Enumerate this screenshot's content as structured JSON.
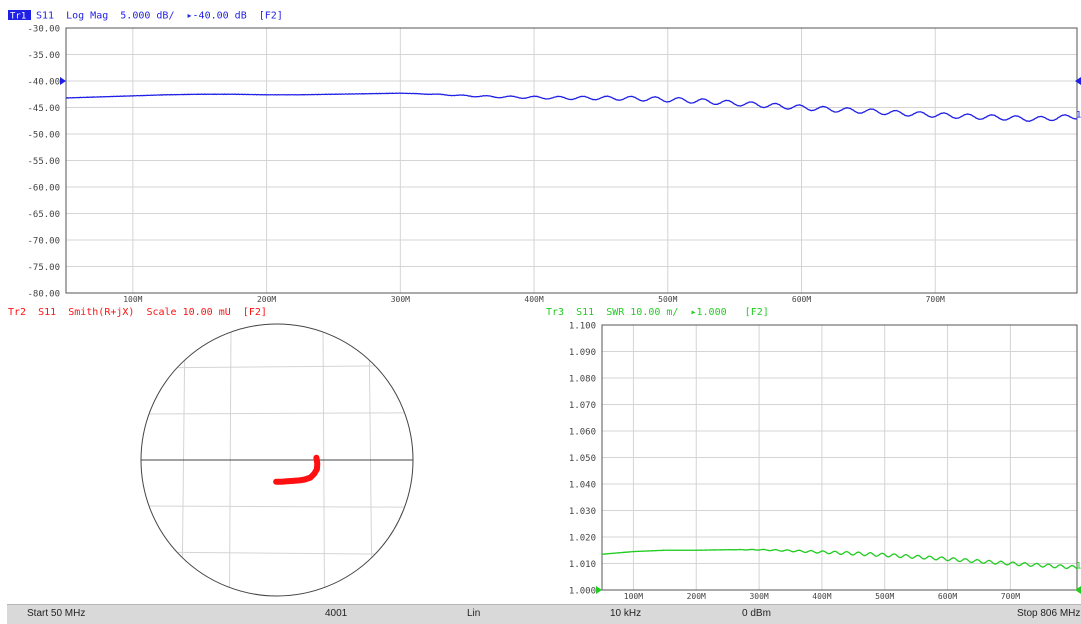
{
  "colors": {
    "trace1": "#1f1fe6",
    "trace2": "#ff1010",
    "trace3": "#22cc22",
    "grid": "#d4d4d4",
    "border": "#555555",
    "title_badge_bg": "#1f1fe6",
    "status_bg": "#d9d9d9"
  },
  "trace1": {
    "badge": "Tr1",
    "title": "S11  Log Mag  5.000 dB/  ▸-40.00 dB  [F2]",
    "end_label": "1"
  },
  "trace2": {
    "title": "Tr2  S11  Smith(R+jX)  Scale 10.00 mU  [F2]"
  },
  "trace3": {
    "title": "Tr3  S11  SWR 10.00 m/  ▸1.000   [F2]",
    "end_label": "1"
  },
  "status": {
    "start": "Start 50 MHz",
    "points": "4001",
    "sweep_type": "Lin",
    "ifbw": "10 kHz",
    "power": "0 dBm",
    "stop": "Stop 806 MHz"
  },
  "chart_data": [
    {
      "type": "line",
      "title": "S11  Log Mag  5.000 dB/  ▸-40.00 dB  [F2]",
      "y_tick_labels": [
        "-30.00",
        "-35.00",
        "-40.00",
        "-45.00",
        "-50.00",
        "-55.00",
        "-60.00",
        "-65.00",
        "-70.00",
        "-75.00",
        "-80.00"
      ],
      "y_ticks": [
        -30,
        -35,
        -40,
        -45,
        -50,
        -55,
        -60,
        -65,
        -70,
        -75,
        -80
      ],
      "x_tick_labels": [
        "100M",
        "200M",
        "300M",
        "400M",
        "500M",
        "600M",
        "700M"
      ],
      "x_ticks": [
        100,
        200,
        300,
        400,
        500,
        600,
        700
      ],
      "xlim": [
        50,
        806
      ],
      "ylim": [
        -80,
        -30
      ],
      "reference_level": -40,
      "grid": true,
      "series": [
        {
          "x": [
            50,
            75,
            100,
            125,
            150,
            175,
            200,
            225,
            250,
            275,
            300,
            325,
            350,
            375,
            400,
            425,
            450,
            475,
            500,
            525,
            550,
            575,
            600,
            625,
            650,
            675,
            700,
            725,
            750,
            775,
            806
          ],
          "values": [
            -43.2,
            -43.0,
            -42.8,
            -42.6,
            -42.5,
            -42.5,
            -42.6,
            -42.6,
            -42.5,
            -42.4,
            -42.3,
            -42.5,
            -42.8,
            -43.0,
            -43.1,
            -43.2,
            -43.2,
            -43.3,
            -43.5,
            -43.8,
            -44.2,
            -44.6,
            -45.0,
            -45.4,
            -45.7,
            -46.1,
            -46.4,
            -46.7,
            -46.9,
            -47.2,
            -46.7
          ],
          "ripple_start_x": 300
        }
      ]
    },
    {
      "type": "scatter",
      "title": "Tr2  S11  Smith(R+jX)  Scale 10.00 mU  [F2]",
      "grid": true,
      "series": [
        {
          "x": [
            0.0085,
            0.0087,
            0.0086,
            0.008,
            0.0072,
            0.006,
            0.0048,
            0.0035,
            0.0022,
            0.001,
            -0.0002
          ],
          "values": [
            0.0005,
            -0.0008,
            -0.002,
            -0.003,
            -0.0038,
            -0.0042,
            -0.0044,
            -0.0045,
            -0.0046,
            -0.0047,
            -0.0047
          ]
        }
      ]
    },
    {
      "type": "line",
      "title": "Tr3  S11  SWR 10.00 m/  ▸1.000   [F2]",
      "y_tick_labels": [
        "1.100",
        "1.090",
        "1.080",
        "1.070",
        "1.060",
        "1.050",
        "1.040",
        "1.030",
        "1.020",
        "1.010",
        "1.000"
      ],
      "y_ticks": [
        1.1,
        1.09,
        1.08,
        1.07,
        1.06,
        1.05,
        1.04,
        1.03,
        1.02,
        1.01,
        1.0
      ],
      "x_tick_labels": [
        "100M",
        "200M",
        "300M",
        "400M",
        "500M",
        "600M",
        "700M"
      ],
      "x_ticks": [
        100,
        200,
        300,
        400,
        500,
        600,
        700
      ],
      "xlim": [
        50,
        806
      ],
      "ylim": [
        1.0,
        1.1
      ],
      "reference_level": 1.0,
      "grid": true,
      "series": [
        {
          "x": [
            50,
            100,
            150,
            200,
            250,
            300,
            350,
            400,
            450,
            500,
            550,
            600,
            650,
            700,
            750,
            806
          ],
          "values": [
            1.0135,
            1.0145,
            1.015,
            1.015,
            1.0152,
            1.0152,
            1.0148,
            1.0143,
            1.0138,
            1.0132,
            1.0125,
            1.0117,
            1.0108,
            1.01,
            1.0093,
            1.0085
          ],
          "ripple_start_x": 250
        }
      ]
    }
  ]
}
